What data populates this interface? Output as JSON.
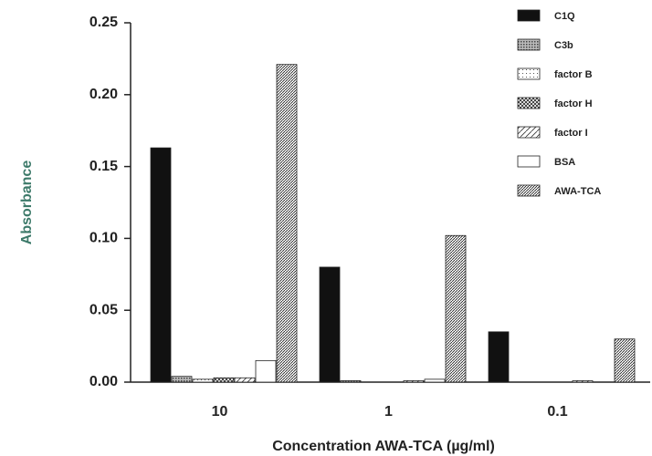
{
  "chart_data": {
    "type": "bar",
    "y_label": "Absorbance",
    "x_label": "Concentration AWA-TCA (µg/ml)",
    "categories": [
      "10",
      "1",
      "0.1"
    ],
    "series": [
      {
        "name": "C1Q",
        "color": "#111111",
        "values": [
          0.163,
          0.08,
          0.035
        ]
      },
      {
        "name": "C3b",
        "color": "#555555",
        "values": [
          0.004,
          0.001,
          0
        ]
      },
      {
        "name": "factor B",
        "color": "#777777",
        "values": [
          0.002,
          0,
          0
        ]
      },
      {
        "name": "factor H",
        "color": "#333333",
        "values": [
          0.003,
          0,
          0
        ]
      },
      {
        "name": "factor I",
        "color": "#444444",
        "values": [
          0.003,
          0.001,
          0.001
        ]
      },
      {
        "name": "BSA",
        "color": "#ffffff",
        "values": [
          0.015,
          0.002,
          0
        ]
      },
      {
        "name": "AWA-TCA",
        "color": "#333333",
        "values": [
          0.221,
          0.102,
          0.03
        ]
      }
    ],
    "ylim": [
      0,
      0.25
    ],
    "yticks": [
      {
        "value": 0,
        "label": "0.00"
      },
      {
        "value": 0.05,
        "label": "0.05"
      },
      {
        "value": 0.1,
        "label": "0.10"
      },
      {
        "value": 0.15,
        "label": "0.15"
      },
      {
        "value": 0.2,
        "label": "0.20"
      },
      {
        "value": 0.25,
        "label": "0.25"
      }
    ],
    "legend": "top-right"
  }
}
